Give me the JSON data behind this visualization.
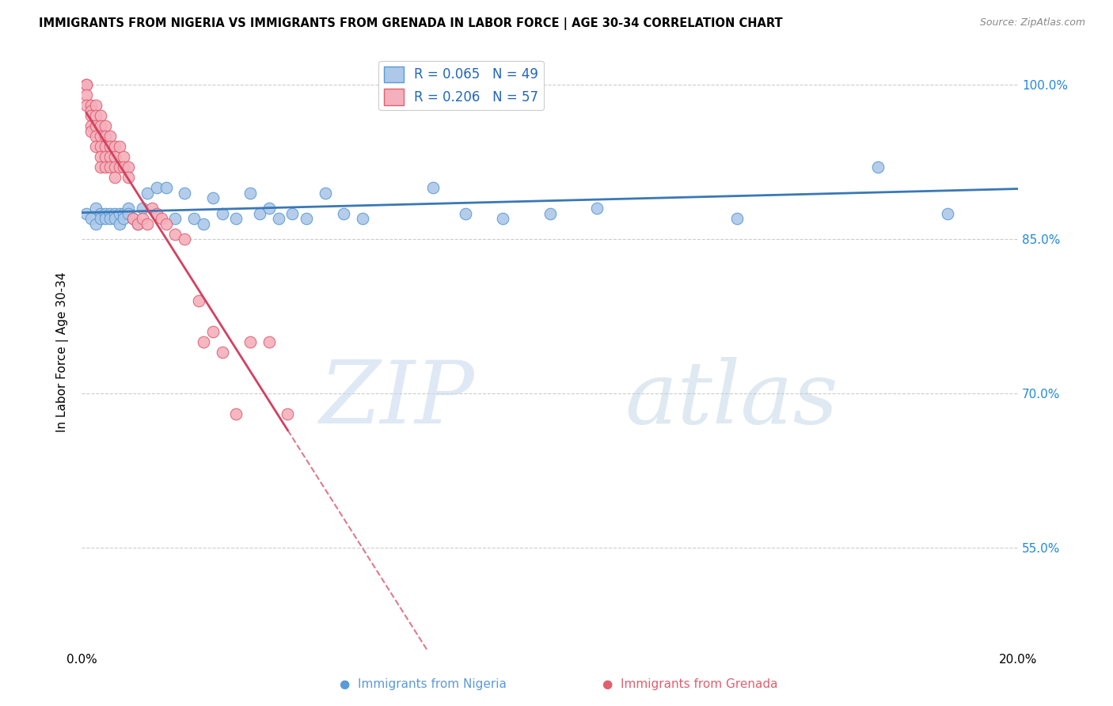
{
  "title": "IMMIGRANTS FROM NIGERIA VS IMMIGRANTS FROM GRENADA IN LABOR FORCE | AGE 30-34 CORRELATION CHART",
  "source": "Source: ZipAtlas.com",
  "ylabel": "In Labor Force | Age 30-34",
  "xmin": 0.0,
  "xmax": 0.2,
  "ymin": 0.45,
  "ymax": 1.03,
  "yticks": [
    0.55,
    0.7,
    0.85,
    1.0
  ],
  "ytick_labels": [
    "55.0%",
    "70.0%",
    "85.0%",
    "100.0%"
  ],
  "xticks": [
    0.0,
    0.04,
    0.08,
    0.12,
    0.16,
    0.2
  ],
  "xtick_labels": [
    "0.0%",
    "",
    "",
    "",
    "",
    "20.0%"
  ],
  "nigeria_R": 0.065,
  "nigeria_N": 49,
  "grenada_R": 0.206,
  "grenada_N": 57,
  "nigeria_color": "#adc8e8",
  "grenada_color": "#f4b0bc",
  "nigeria_edge": "#5b9bd5",
  "grenada_edge": "#e06070",
  "trend_nigeria_color": "#3a78b5",
  "trend_grenada_color": "#d44060",
  "watermark_zip": "ZIP",
  "watermark_atlas": "atlas",
  "nigeria_x": [
    0.001,
    0.002,
    0.003,
    0.003,
    0.004,
    0.004,
    0.005,
    0.005,
    0.006,
    0.006,
    0.007,
    0.007,
    0.008,
    0.008,
    0.009,
    0.009,
    0.01,
    0.01,
    0.011,
    0.012,
    0.013,
    0.014,
    0.016,
    0.018,
    0.02,
    0.022,
    0.024,
    0.026,
    0.028,
    0.03,
    0.033,
    0.036,
    0.038,
    0.04,
    0.042,
    0.045,
    0.048,
    0.052,
    0.056,
    0.06,
    0.068,
    0.075,
    0.082,
    0.09,
    0.1,
    0.11,
    0.14,
    0.17,
    0.185
  ],
  "nigeria_y": [
    0.875,
    0.87,
    0.88,
    0.865,
    0.875,
    0.87,
    0.875,
    0.87,
    0.875,
    0.87,
    0.875,
    0.87,
    0.875,
    0.865,
    0.875,
    0.87,
    0.88,
    0.875,
    0.87,
    0.865,
    0.88,
    0.895,
    0.9,
    0.9,
    0.87,
    0.895,
    0.87,
    0.865,
    0.89,
    0.875,
    0.87,
    0.895,
    0.875,
    0.88,
    0.87,
    0.875,
    0.87,
    0.895,
    0.875,
    0.87,
    1.0,
    0.9,
    0.875,
    0.87,
    0.875,
    0.88,
    0.87,
    0.92,
    0.875
  ],
  "grenada_x": [
    0.001,
    0.001,
    0.001,
    0.001,
    0.002,
    0.002,
    0.002,
    0.002,
    0.002,
    0.003,
    0.003,
    0.003,
    0.003,
    0.003,
    0.004,
    0.004,
    0.004,
    0.004,
    0.004,
    0.004,
    0.005,
    0.005,
    0.005,
    0.005,
    0.005,
    0.006,
    0.006,
    0.006,
    0.006,
    0.007,
    0.007,
    0.007,
    0.007,
    0.008,
    0.008,
    0.009,
    0.009,
    0.01,
    0.01,
    0.011,
    0.012,
    0.013,
    0.014,
    0.015,
    0.016,
    0.017,
    0.018,
    0.02,
    0.022,
    0.025,
    0.026,
    0.028,
    0.03,
    0.033,
    0.036,
    0.04,
    0.044
  ],
  "grenada_y": [
    1.0,
    1.0,
    0.99,
    0.98,
    0.98,
    0.975,
    0.97,
    0.96,
    0.955,
    0.98,
    0.97,
    0.96,
    0.95,
    0.94,
    0.97,
    0.96,
    0.95,
    0.94,
    0.93,
    0.92,
    0.96,
    0.95,
    0.94,
    0.93,
    0.92,
    0.95,
    0.94,
    0.93,
    0.92,
    0.94,
    0.93,
    0.92,
    0.91,
    0.94,
    0.92,
    0.93,
    0.92,
    0.92,
    0.91,
    0.87,
    0.865,
    0.87,
    0.865,
    0.88,
    0.875,
    0.87,
    0.865,
    0.855,
    0.85,
    0.79,
    0.75,
    0.76,
    0.74,
    0.68,
    0.75,
    0.75,
    0.68
  ]
}
